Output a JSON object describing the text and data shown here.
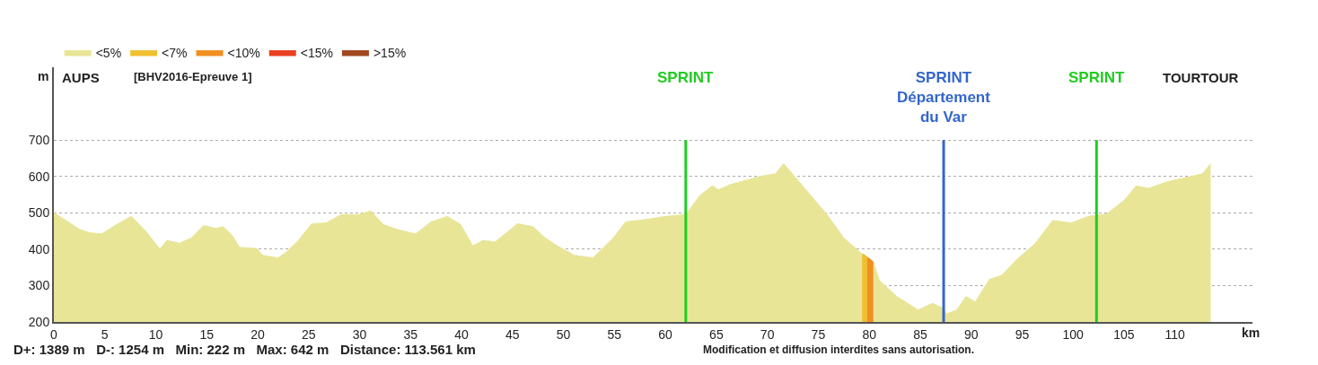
{
  "chart_data": {
    "type": "area",
    "title": "[BHV2016-Epreuve 1]",
    "xlabel": "km",
    "ylabel": "m",
    "x": [
      0,
      1.4,
      2.5,
      3.5,
      4.7,
      6,
      7.6,
      9,
      10.4,
      11.1,
      12.3,
      13.5,
      14.7,
      15.9,
      16.6,
      17.5,
      18.2,
      19.9,
      20.5,
      22,
      22.9,
      24,
      25.3,
      26.7,
      28.2,
      29.9,
      31.1,
      32.3,
      33.8,
      35.5,
      37,
      38.6,
      39.9,
      41.1,
      42.1,
      43.3,
      45.5,
      47,
      48.2,
      49.4,
      51.1,
      52.9,
      54.9,
      56.1,
      58.2,
      60,
      62,
      63.4,
      64.6,
      65.2,
      66.4,
      69.3,
      70.8,
      71.6,
      72.8,
      74,
      75.8,
      77.5,
      79.3,
      79.6,
      79.8,
      80.1,
      80.4,
      81,
      82.7,
      84.8,
      86.2,
      87.1,
      87.6,
      88.6,
      89.5,
      90.4,
      91.8,
      93,
      94.5,
      96.3,
      98,
      99.8,
      101.5,
      103.3,
      105,
      106.2,
      107.4,
      109.2,
      112.7,
      113.5
    ],
    "series": [
      {
        "name": "<5%",
        "color": "#e8e597",
        "values": [
          500,
          475,
          455,
          445,
          442,
          465,
          490,
          450,
          400,
          424,
          416,
          431,
          465,
          457,
          462,
          438,
          405,
          402,
          383,
          376,
          394,
          424,
          470,
          472,
          495,
          495,
          505,
          468,
          453,
          442,
          475,
          490,
          468,
          409,
          424,
          420,
          470,
          462,
          431,
          409,
          383,
          376,
          431,
          475,
          482,
          490,
          495,
          548,
          574,
          563,
          578,
          600,
          607,
          635,
          596,
          556,
          497,
          431,
          387,
          383,
          378,
          372,
          365,
          314,
          270,
          233,
          251,
          240,
          222,
          233,
          270,
          255,
          317,
          328,
          372,
          416,
          479,
          472,
          490,
          497,
          534,
          574,
          567,
          585,
          607,
          635
        ]
      },
      {
        "name": "<7%",
        "color": "#f0c030",
        "x": [
          79.3,
          79.6,
          79.8
        ],
        "values": [
          387,
          383,
          378
        ]
      },
      {
        "name": "<10%",
        "color": "#f09020",
        "x": [
          79.8,
          80.1,
          80.4
        ],
        "values": [
          378,
          372,
          365
        ]
      },
      {
        "name": "<15%",
        "color": "#e84020",
        "values": [
          null,
          null,
          null,
          null,
          null,
          null,
          null,
          null,
          null,
          null,
          null,
          null,
          null,
          null,
          null,
          null,
          null,
          null,
          null,
          null,
          null,
          null,
          null,
          null,
          null,
          null,
          null,
          null,
          null,
          null,
          null,
          null,
          null,
          null,
          null,
          null,
          null,
          null,
          null,
          null,
          null,
          null,
          null,
          null,
          null,
          null,
          null,
          null,
          null,
          null,
          null,
          null,
          null,
          null,
          null,
          null,
          null,
          null,
          null,
          null,
          null,
          null,
          null,
          null,
          null,
          null,
          null,
          null,
          null,
          null,
          null,
          null,
          null,
          null,
          null,
          null,
          null,
          null,
          null,
          null,
          null,
          null,
          null,
          null,
          null,
          null
        ]
      },
      {
        "name": ">15%",
        "color": "#a04820",
        "values": [
          null,
          null,
          null,
          null,
          null,
          null,
          null,
          null,
          null,
          null,
          null,
          null,
          null,
          null,
          null,
          null,
          null,
          null,
          null,
          null,
          null,
          null,
          null,
          null,
          null,
          null,
          null,
          null,
          null,
          null,
          null,
          null,
          null,
          null,
          null,
          null,
          null,
          null,
          null,
          null,
          null,
          null,
          null,
          null,
          null,
          null,
          null,
          null,
          null,
          null,
          null,
          null,
          null,
          null,
          null,
          null,
          null,
          null,
          null,
          null,
          null,
          null,
          null,
          null,
          null,
          null,
          null,
          null,
          null,
          null,
          null,
          null,
          null,
          null,
          null,
          null,
          null,
          null,
          null,
          null,
          null,
          null,
          null,
          null,
          null,
          null
        ]
      }
    ],
    "xlim": [
      0,
      117.6
    ],
    "xticks": [
      0,
      5,
      10,
      15,
      20,
      25,
      30,
      35,
      40,
      45,
      50,
      55,
      60,
      65,
      70,
      75,
      80,
      85,
      90,
      95,
      100,
      105,
      110
    ],
    "ylim": [
      200,
      900
    ],
    "yticks": [
      200,
      300,
      400,
      500,
      600,
      700
    ],
    "grid": "y",
    "legend": "top left",
    "ref_lines": [
      {
        "axis": "x",
        "value": 62,
        "label": "SPRINT",
        "color": "#22cc22"
      },
      {
        "axis": "x",
        "value": 87.3,
        "label": "SPRINT\nDépartement\ndu Var",
        "color": "#3366cc"
      },
      {
        "axis": "x",
        "value": 102.3,
        "label": "SPRINT",
        "color": "#22cc22"
      }
    ],
    "annotations": [
      "AUPS",
      "TOURTOUR",
      "D+: 1389 m   D-: 1254 m   Min: 222 m   Max: 642 m   Distance: 113.561 km",
      "Modification et diffusion interdites sans autorisation."
    ]
  }
}
